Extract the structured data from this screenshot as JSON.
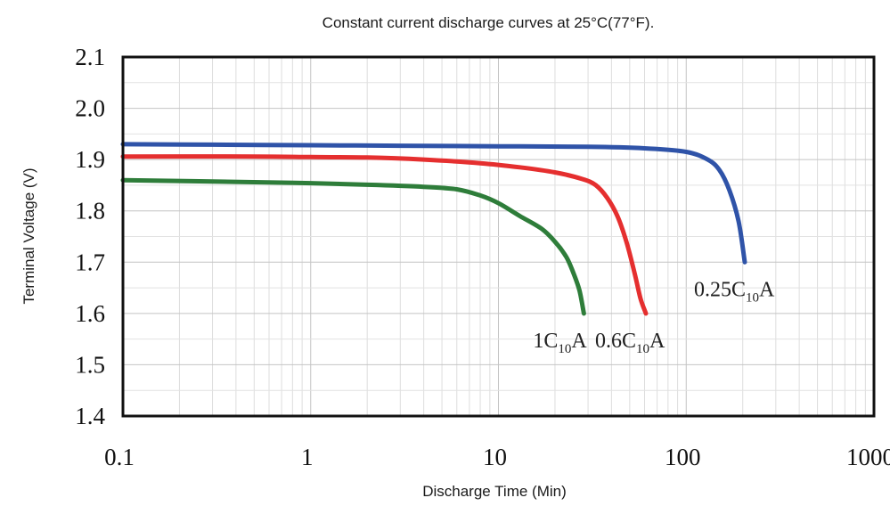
{
  "chart_data": {
    "type": "line",
    "title": "Constant current discharge curves at 25°C(77°F).",
    "xlabel": "Discharge Time (Min)",
    "ylabel": "Terminal Voltage (V)",
    "xscale": "log",
    "xlim": [
      0.1,
      1000
    ],
    "ylim": [
      1.4,
      2.1
    ],
    "xticks": [
      0.1,
      1,
      10,
      100,
      1000
    ],
    "xtick_labels": [
      "0.1",
      "1",
      "10",
      "100",
      "1000"
    ],
    "yticks": [
      1.4,
      1.5,
      1.6,
      1.7,
      1.8,
      1.9,
      2.0,
      2.1
    ],
    "ytick_labels": [
      "1.4",
      "1.5",
      "1.6",
      "1.7",
      "1.8",
      "1.9",
      "2.0",
      "2.1"
    ],
    "grid": true,
    "series": [
      {
        "name": "0.25C10A",
        "label_main": "0.25C",
        "label_sub": "10",
        "label_end": "A",
        "color": "#2f53a8",
        "points": [
          [
            0.1,
            1.93
          ],
          [
            0.3,
            1.929
          ],
          [
            1,
            1.928
          ],
          [
            3,
            1.927
          ],
          [
            10,
            1.926
          ],
          [
            30,
            1.925
          ],
          [
            60,
            1.922
          ],
          [
            100,
            1.915
          ],
          [
            130,
            1.9
          ],
          [
            150,
            1.88
          ],
          [
            170,
            1.84
          ],
          [
            190,
            1.78
          ],
          [
            205,
            1.7
          ]
        ]
      },
      {
        "name": "0.6C10A",
        "label_main": "0.6C",
        "label_sub": "10",
        "label_end": "A",
        "color": "#e52f2f",
        "points": [
          [
            0.1,
            1.906
          ],
          [
            0.5,
            1.906
          ],
          [
            1,
            1.905
          ],
          [
            2,
            1.904
          ],
          [
            4,
            1.9
          ],
          [
            8,
            1.893
          ],
          [
            13,
            1.885
          ],
          [
            20,
            1.875
          ],
          [
            28,
            1.862
          ],
          [
            33,
            1.85
          ],
          [
            38,
            1.825
          ],
          [
            43,
            1.79
          ],
          [
            48,
            1.74
          ],
          [
            53,
            1.68
          ],
          [
            57,
            1.63
          ],
          [
            61,
            1.6
          ]
        ]
      },
      {
        "name": "1C10A",
        "label_main": "1C",
        "label_sub": "10",
        "label_end": "A",
        "color": "#2e7d3a",
        "points": [
          [
            0.1,
            1.86
          ],
          [
            0.5,
            1.856
          ],
          [
            1,
            1.854
          ],
          [
            2,
            1.851
          ],
          [
            4,
            1.847
          ],
          [
            6,
            1.842
          ],
          [
            8,
            1.83
          ],
          [
            10,
            1.815
          ],
          [
            13,
            1.79
          ],
          [
            17,
            1.765
          ],
          [
            20,
            1.74
          ],
          [
            23,
            1.71
          ],
          [
            25,
            1.68
          ],
          [
            27,
            1.645
          ],
          [
            28.5,
            1.6
          ]
        ]
      }
    ]
  }
}
